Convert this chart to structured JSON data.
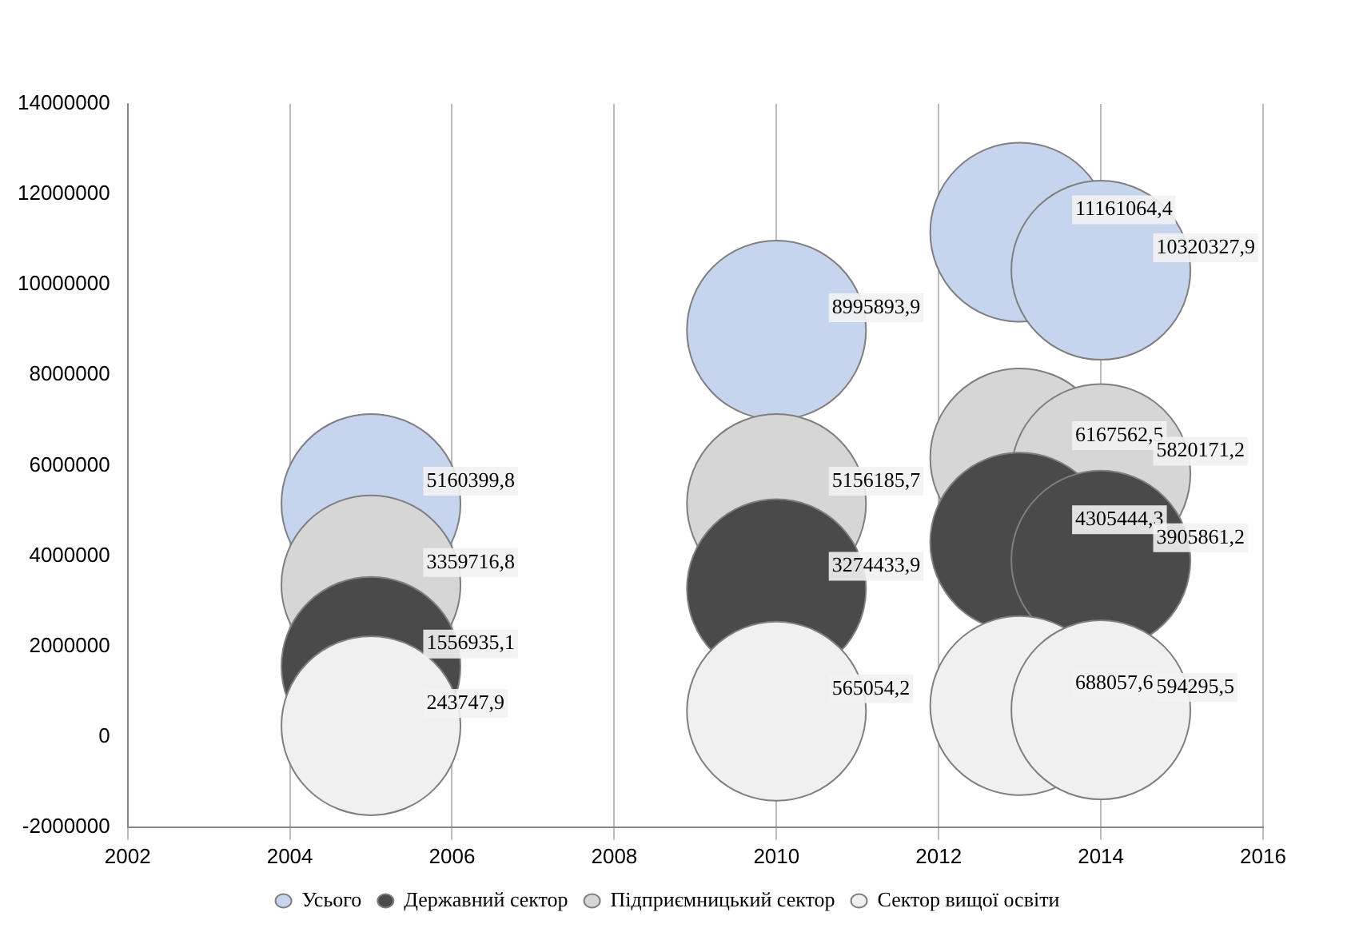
{
  "chart_data": {
    "type": "bubble",
    "x": [
      2005,
      2010,
      2013,
      2014
    ],
    "series": [
      {
        "name": "Усього",
        "color": "#c6d4ee",
        "values": [
          5160399.8,
          8995893.9,
          11161064.4,
          10320327.9
        ],
        "sizes": [
          1,
          1,
          1,
          1
        ],
        "value_labels": [
          "5160399,8",
          "8995893,9",
          "11161064,4",
          "10320327,9"
        ]
      },
      {
        "name": "Державний сектор",
        "color": "#4a4a4a",
        "values": [
          1556935.1,
          3274433.9,
          4305444.3,
          3905861.2
        ],
        "sizes": [
          1,
          1,
          1,
          1
        ],
        "value_labels": [
          "1556935,1",
          "3274433,9",
          "4305444,3",
          "3905861,2"
        ]
      },
      {
        "name": "Підприємницький сектор",
        "color": "#d6d6d6",
        "values": [
          3359716.8,
          5156185.7,
          6167562.5,
          5820171.2
        ],
        "sizes": [
          1,
          1,
          1,
          1
        ],
        "value_labels": [
          "3359716,8",
          "5156185,7",
          "6167562,5",
          "5820171,2"
        ]
      },
      {
        "name": "Сектор вищої освіти",
        "color": "#f0f0f0",
        "values": [
          243747.9,
          565054.2,
          688057.6,
          594295.5
        ],
        "sizes": [
          1,
          1,
          1,
          1
        ],
        "value_labels": [
          "243747,9",
          "565054,2",
          "688057,6",
          "594295,5"
        ]
      }
    ],
    "xlim": [
      2002,
      2016
    ],
    "xticks": [
      2002,
      2004,
      2006,
      2008,
      2010,
      2012,
      2014,
      2016
    ],
    "ylim": [
      -2000000,
      14000000
    ],
    "yticks": [
      -2000000,
      0,
      2000000,
      4000000,
      6000000,
      8000000,
      10000000,
      12000000,
      14000000
    ],
    "grid": "x",
    "legend": "bottom"
  }
}
